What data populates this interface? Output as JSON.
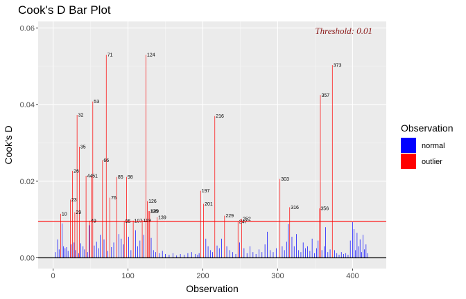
{
  "chart_data": {
    "type": "bar",
    "title": "Cook's D Bar Plot",
    "xlabel": "Observation",
    "ylabel": "Cook's D",
    "xlim": [
      -20,
      445
    ],
    "ylim": [
      -0.0028,
      0.0617
    ],
    "x_ticks": [
      0,
      100,
      200,
      300,
      400
    ],
    "y_ticks": [
      0.0,
      0.02,
      0.04,
      0.06
    ],
    "y_tick_labels": [
      "0.00",
      "0.02",
      "0.04",
      "0.06"
    ],
    "grid": true,
    "threshold": {
      "value": 0.0095,
      "label": "Threshold: 0.01",
      "color": "#8B1A1A",
      "line_color": "#ff0000"
    },
    "legend": {
      "title": "Observation",
      "placement": "right",
      "items": [
        {
          "label": "normal",
          "color": "#0000ff"
        },
        {
          "label": "outlier",
          "color": "#ff0000"
        }
      ]
    },
    "series": [
      {
        "name": "outlier",
        "color": "#ff0000",
        "points": [
          {
            "x": 10,
            "y": 0.0115,
            "label": "10"
          },
          {
            "x": 23,
            "y": 0.0152,
            "label": "23"
          },
          {
            "x": 26,
            "y": 0.0227,
            "label": "26"
          },
          {
            "x": 29,
            "y": 0.0119,
            "label": "29"
          },
          {
            "x": 32,
            "y": 0.0373,
            "label": "32"
          },
          {
            "x": 35,
            "y": 0.029,
            "label": "35"
          },
          {
            "x": 44,
            "y": 0.0214,
            "label": "44"
          },
          {
            "x": 49,
            "y": 0.0097,
            "label": "49"
          },
          {
            "x": 51,
            "y": 0.0214,
            "label": "51"
          },
          {
            "x": 53,
            "y": 0.0408,
            "label": "53"
          },
          {
            "x": 66,
            "y": 0.0255,
            "label": "66"
          },
          {
            "x": 71,
            "y": 0.053,
            "label": "71"
          },
          {
            "x": 76,
            "y": 0.0157,
            "label": "76"
          },
          {
            "x": 85,
            "y": 0.0211,
            "label": "85"
          },
          {
            "x": 95,
            "y": 0.0096,
            "label": "95"
          },
          {
            "x": 98,
            "y": 0.0211,
            "label": "98"
          },
          {
            "x": 107,
            "y": 0.0097,
            "label": "107"
          },
          {
            "x": 119,
            "y": 0.0098,
            "label": "119"
          },
          {
            "x": 124,
            "y": 0.053,
            "label": "124"
          },
          {
            "x": 126,
            "y": 0.0148,
            "label": "126"
          },
          {
            "x": 128,
            "y": 0.0122,
            "label": "128"
          },
          {
            "x": 129,
            "y": 0.0122,
            "label": "129"
          },
          {
            "x": 139,
            "y": 0.0106,
            "label": "139"
          },
          {
            "x": 197,
            "y": 0.0175,
            "label": "197"
          },
          {
            "x": 201,
            "y": 0.0141,
            "label": "201"
          },
          {
            "x": 216,
            "y": 0.037,
            "label": "216"
          },
          {
            "x": 229,
            "y": 0.011,
            "label": "229"
          },
          {
            "x": 247,
            "y": 0.0095,
            "label": "247"
          },
          {
            "x": 252,
            "y": 0.0102,
            "label": "252"
          },
          {
            "x": 303,
            "y": 0.0206,
            "label": "303"
          },
          {
            "x": 316,
            "y": 0.0132,
            "label": "316"
          },
          {
            "x": 356,
            "y": 0.0129,
            "label": "356"
          },
          {
            "x": 357,
            "y": 0.0425,
            "label": "357"
          },
          {
            "x": 373,
            "y": 0.0503,
            "label": "373"
          }
        ]
      },
      {
        "name": "normal",
        "color": "#0000ff",
        "points": [
          {
            "x": 3,
            "y": 0.0015
          },
          {
            "x": 6,
            "y": 0.0048
          },
          {
            "x": 8,
            "y": 0.0022
          },
          {
            "x": 12,
            "y": 0.009
          },
          {
            "x": 14,
            "y": 0.003
          },
          {
            "x": 16,
            "y": 0.0025
          },
          {
            "x": 18,
            "y": 0.0028
          },
          {
            "x": 20,
            "y": 0.0018
          },
          {
            "x": 24,
            "y": 0.0035
          },
          {
            "x": 28,
            "y": 0.004
          },
          {
            "x": 30,
            "y": 0.002
          },
          {
            "x": 34,
            "y": 0.0012
          },
          {
            "x": 37,
            "y": 0.0038
          },
          {
            "x": 40,
            "y": 0.003
          },
          {
            "x": 42,
            "y": 0.0022
          },
          {
            "x": 46,
            "y": 0.0015
          },
          {
            "x": 48,
            "y": 0.0085
          },
          {
            "x": 55,
            "y": 0.0032
          },
          {
            "x": 58,
            "y": 0.0042
          },
          {
            "x": 61,
            "y": 0.0025
          },
          {
            "x": 63,
            "y": 0.006
          },
          {
            "x": 68,
            "y": 0.0048
          },
          {
            "x": 73,
            "y": 0.0018
          },
          {
            "x": 78,
            "y": 0.0028
          },
          {
            "x": 81,
            "y": 0.004
          },
          {
            "x": 88,
            "y": 0.0062
          },
          {
            "x": 91,
            "y": 0.005
          },
          {
            "x": 94,
            "y": 0.0035
          },
          {
            "x": 101,
            "y": 0.0055
          },
          {
            "x": 104,
            "y": 0.002
          },
          {
            "x": 110,
            "y": 0.0072
          },
          {
            "x": 113,
            "y": 0.003
          },
          {
            "x": 116,
            "y": 0.0045
          },
          {
            "x": 121,
            "y": 0.006
          },
          {
            "x": 131,
            "y": 0.0052
          },
          {
            "x": 134,
            "y": 0.002
          },
          {
            "x": 137,
            "y": 0.0015
          },
          {
            "x": 142,
            "y": 0.0012
          },
          {
            "x": 146,
            "y": 0.0018
          },
          {
            "x": 150,
            "y": 0.001
          },
          {
            "x": 155,
            "y": 0.0008
          },
          {
            "x": 160,
            "y": 0.0012
          },
          {
            "x": 165,
            "y": 0.0006
          },
          {
            "x": 170,
            "y": 0.001
          },
          {
            "x": 175,
            "y": 0.0008
          },
          {
            "x": 180,
            "y": 0.0012
          },
          {
            "x": 185,
            "y": 0.0015
          },
          {
            "x": 190,
            "y": 0.001
          },
          {
            "x": 193,
            "y": 0.0008
          },
          {
            "x": 195,
            "y": 0.0012
          },
          {
            "x": 204,
            "y": 0.005
          },
          {
            "x": 207,
            "y": 0.003
          },
          {
            "x": 210,
            "y": 0.002
          },
          {
            "x": 213,
            "y": 0.0015
          },
          {
            "x": 219,
            "y": 0.0032
          },
          {
            "x": 222,
            "y": 0.0025
          },
          {
            "x": 225,
            "y": 0.005
          },
          {
            "x": 232,
            "y": 0.003
          },
          {
            "x": 236,
            "y": 0.002
          },
          {
            "x": 240,
            "y": 0.0015
          },
          {
            "x": 244,
            "y": 0.001
          },
          {
            "x": 249,
            "y": 0.004
          },
          {
            "x": 255,
            "y": 0.0025
          },
          {
            "x": 259,
            "y": 0.0012
          },
          {
            "x": 263,
            "y": 0.003
          },
          {
            "x": 267,
            "y": 0.0015
          },
          {
            "x": 271,
            "y": 0.001
          },
          {
            "x": 275,
            "y": 0.0022
          },
          {
            "x": 279,
            "y": 0.0015
          },
          {
            "x": 283,
            "y": 0.0035
          },
          {
            "x": 286,
            "y": 0.0068
          },
          {
            "x": 290,
            "y": 0.002
          },
          {
            "x": 294,
            "y": 0.0015
          },
          {
            "x": 298,
            "y": 0.0025
          },
          {
            "x": 306,
            "y": 0.003
          },
          {
            "x": 309,
            "y": 0.002
          },
          {
            "x": 312,
            "y": 0.0042
          },
          {
            "x": 314,
            "y": 0.0088
          },
          {
            "x": 319,
            "y": 0.0055
          },
          {
            "x": 322,
            "y": 0.003
          },
          {
            "x": 325,
            "y": 0.0062
          },
          {
            "x": 328,
            "y": 0.002
          },
          {
            "x": 331,
            "y": 0.0015
          },
          {
            "x": 334,
            "y": 0.004
          },
          {
            "x": 337,
            "y": 0.0025
          },
          {
            "x": 340,
            "y": 0.003
          },
          {
            "x": 343,
            "y": 0.0018
          },
          {
            "x": 346,
            "y": 0.005
          },
          {
            "x": 349,
            "y": 0.0012
          },
          {
            "x": 352,
            "y": 0.0025
          },
          {
            "x": 354,
            "y": 0.0045
          },
          {
            "x": 359,
            "y": 0.002
          },
          {
            "x": 362,
            "y": 0.003
          },
          {
            "x": 364,
            "y": 0.008
          },
          {
            "x": 367,
            "y": 0.0015
          },
          {
            "x": 370,
            "y": 0.0022
          },
          {
            "x": 376,
            "y": 0.002
          },
          {
            "x": 379,
            "y": 0.0012
          },
          {
            "x": 382,
            "y": 0.0008
          },
          {
            "x": 385,
            "y": 0.0015
          },
          {
            "x": 388,
            "y": 0.001
          },
          {
            "x": 391,
            "y": 0.0012
          },
          {
            "x": 394,
            "y": 0.0008
          },
          {
            "x": 397,
            "y": 0.0045
          },
          {
            "x": 400,
            "y": 0.0093
          },
          {
            "x": 402,
            "y": 0.0075
          },
          {
            "x": 404,
            "y": 0.002
          },
          {
            "x": 406,
            "y": 0.0065
          },
          {
            "x": 408,
            "y": 0.003
          },
          {
            "x": 410,
            "y": 0.0048
          },
          {
            "x": 412,
            "y": 0.0015
          },
          {
            "x": 414,
            "y": 0.006
          },
          {
            "x": 416,
            "y": 0.0022
          },
          {
            "x": 418,
            "y": 0.0035
          },
          {
            "x": 420,
            "y": 0.0012
          }
        ]
      }
    ]
  }
}
